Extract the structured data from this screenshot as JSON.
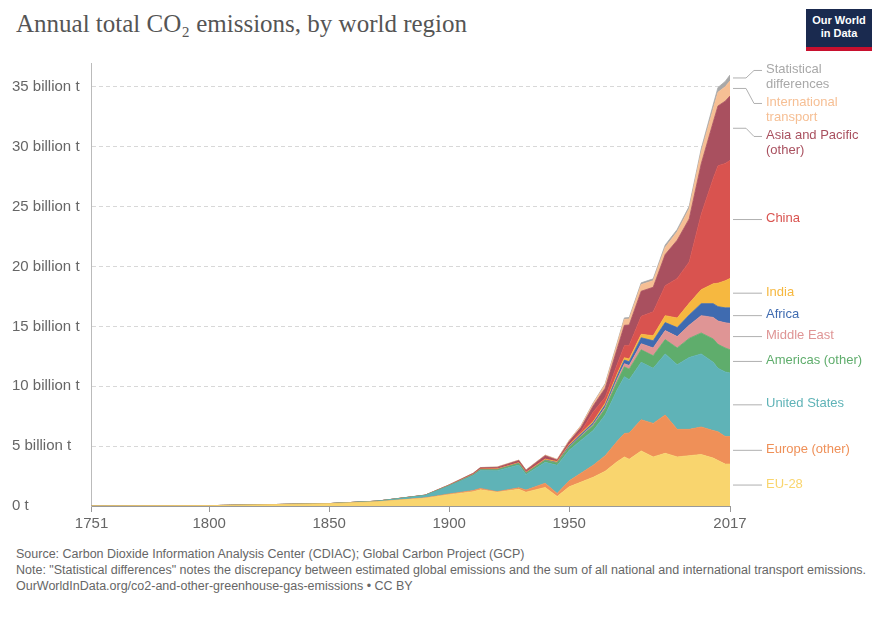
{
  "chart_data": {
    "type": "area",
    "title": "Annual total CO₂ emissions, by world region",
    "logo": [
      "Our World",
      "in Data"
    ],
    "source": "Source: Carbon Dioxide Information Analysis Center (CDIAC); Global Carbon Project (GCP)",
    "note": "Note: \"Statistical differences\" notes the discrepancy between estimated global emissions and the sum of all national and international transport emissions.",
    "footer": "OurWorldInData.org/co2-and-other-greenhouse-gas-emissions • CC BY",
    "stacked": true,
    "grid": true,
    "x": [
      1751,
      1800,
      1850,
      1870,
      1890,
      1900,
      1910,
      1913,
      1920,
      1929,
      1932,
      1940,
      1945,
      1950,
      1955,
      1960,
      1965,
      1970,
      1973,
      1975,
      1980,
      1985,
      1990,
      1995,
      2000,
      2005,
      2010,
      2012,
      2015,
      2017
    ],
    "xlim": [
      1751,
      2017
    ],
    "xticks": [
      1751,
      1800,
      1850,
      1900,
      1950,
      2017
    ],
    "ylim": [
      0,
      37000000000.0
    ],
    "yticks": [
      {
        "value": 0,
        "label": "0 t"
      },
      {
        "value": 5000000000.0,
        "label": "5 billion t"
      },
      {
        "value": 10000000000.0,
        "label": "10 billion t"
      },
      {
        "value": 15000000000.0,
        "label": "15 billion t"
      },
      {
        "value": 20000000000.0,
        "label": "20 billion t"
      },
      {
        "value": 25000000000.0,
        "label": "25 billion t"
      },
      {
        "value": 30000000000.0,
        "label": "30 billion t"
      },
      {
        "value": 35000000000.0,
        "label": "35 billion t"
      }
    ],
    "series": [
      {
        "name": "EU-28",
        "color": "#f9d56e",
        "values": [
          9000000.0,
          28000000.0,
          190000000.0,
          350000000.0,
          650000000.0,
          950000000.0,
          1200000000.0,
          1350000000.0,
          1150000000.0,
          1400000000.0,
          1150000000.0,
          1550000000.0,
          800000000.0,
          1600000000.0,
          2000000000.0,
          2400000000.0,
          2900000000.0,
          3700000000.0,
          4100000000.0,
          3900000000.0,
          4600000000.0,
          4100000000.0,
          4400000000.0,
          4100000000.0,
          4200000000.0,
          4300000000.0,
          4000000000.0,
          3800000000.0,
          3500000000.0,
          3500000000.0
        ]
      },
      {
        "name": "Europe (other)",
        "color": "#ef9058",
        "values": [
          0,
          1000000.0,
          5000000.0,
          10000000.0,
          30000000.0,
          60000000.0,
          90000000.0,
          120000000.0,
          50000000.0,
          120000000.0,
          180000000.0,
          350000000.0,
          250000000.0,
          500000000.0,
          750000000.0,
          1000000000.0,
          1300000000.0,
          1700000000.0,
          1950000000.0,
          2200000000.0,
          2600000000.0,
          2800000000.0,
          3200000000.0,
          2300000000.0,
          2200000000.0,
          2300000000.0,
          2300000000.0,
          2400000000.0,
          2300000000.0,
          2300000000.0
        ]
      },
      {
        "name": "United States",
        "color": "#5fb3b7",
        "values": [
          0,
          300000.0,
          5000000.0,
          40000000.0,
          200000000.0,
          660000000.0,
          1250000000.0,
          1500000000.0,
          1750000000.0,
          1900000000.0,
          1300000000.0,
          1750000000.0,
          2350000000.0,
          2550000000.0,
          2750000000.0,
          2900000000.0,
          3400000000.0,
          4300000000.0,
          4750000000.0,
          4450000000.0,
          4800000000.0,
          4600000000.0,
          5100000000.0,
          5400000000.0,
          6000000000.0,
          6100000000.0,
          5700000000.0,
          5300000000.0,
          5400000000.0,
          5300000000.0
        ]
      },
      {
        "name": "Americas (other)",
        "color": "#5fad6c",
        "values": [
          0,
          0,
          0,
          2000000.0,
          10000000.0,
          20000000.0,
          50000000.0,
          60000000.0,
          80000000.0,
          120000000.0,
          100000000.0,
          150000000.0,
          180000000.0,
          250000000.0,
          320000000.0,
          420000000.0,
          520000000.0,
          700000000.0,
          820000000.0,
          880000000.0,
          1050000000.0,
          1050000000.0,
          1200000000.0,
          1400000000.0,
          1600000000.0,
          1750000000.0,
          1950000000.0,
          2000000000.0,
          2000000000.0,
          1950000000.0
        ]
      },
      {
        "name": "Middle East",
        "color": "#df9595",
        "values": [
          0,
          0,
          0,
          0,
          0,
          0,
          0,
          0,
          1000000.0,
          3000000.0,
          4000000.0,
          6000000.0,
          10000000.0,
          30000000.0,
          50000000.0,
          80000000.0,
          120000000.0,
          200000000.0,
          270000000.0,
          300000000.0,
          500000000.0,
          650000000.0,
          750000000.0,
          950000000.0,
          1100000000.0,
          1450000000.0,
          1800000000.0,
          1950000000.0,
          2100000000.0,
          2200000000.0
        ]
      },
      {
        "name": "Africa",
        "color": "#3f6bb0",
        "values": [
          0,
          0,
          0,
          0,
          2000000.0,
          5000000.0,
          10000000.0,
          12000000.0,
          15000000.0,
          20000000.0,
          20000000.0,
          30000000.0,
          35000000.0,
          100000000.0,
          120000000.0,
          150000000.0,
          190000000.0,
          260000000.0,
          300000000.0,
          320000000.0,
          500000000.0,
          600000000.0,
          670000000.0,
          750000000.0,
          850000000.0,
          1000000000.0,
          1150000000.0,
          1200000000.0,
          1250000000.0,
          1300000000.0
        ]
      },
      {
        "name": "India",
        "color": "#f6b840",
        "values": [
          0,
          0,
          0,
          2000000.0,
          5000000.0,
          20000000.0,
          30000000.0,
          35000000.0,
          40000000.0,
          50000000.0,
          45000000.0,
          60000000.0,
          70000000.0,
          70000000.0,
          80000000.0,
          110000000.0,
          160000000.0,
          180000000.0,
          200000000.0,
          220000000.0,
          290000000.0,
          420000000.0,
          580000000.0,
          800000000.0,
          980000000.0,
          1170000000.0,
          1660000000.0,
          1960000000.0,
          2260000000.0,
          2450000000.0
        ]
      },
      {
        "name": "China",
        "color": "#d9534f",
        "values": [
          0,
          0,
          0,
          0,
          1000000.0,
          5000000.0,
          10000000.0,
          15000000.0,
          20000000.0,
          30000000.0,
          35000000.0,
          50000000.0,
          40000000.0,
          80000000.0,
          200000000.0,
          800000000.0,
          500000000.0,
          800000000.0,
          1000000000.0,
          1150000000.0,
          1500000000.0,
          2000000000.0,
          2500000000.0,
          3300000000.0,
          3450000000.0,
          6300000000.0,
          8800000000.0,
          9800000000.0,
          9800000000.0,
          9850000000.0
        ]
      },
      {
        "name": "Asia and Pacific (other)",
        "color": "#a9505f",
        "values": [
          0,
          0,
          0,
          2000000.0,
          10000000.0,
          40000000.0,
          80000000.0,
          100000000.0,
          120000000.0,
          150000000.0,
          140000000.0,
          250000000.0,
          100000000.0,
          200000000.0,
          300000000.0,
          500000000.0,
          750000000.0,
          1300000000.0,
          1700000000.0,
          1700000000.0,
          2100000000.0,
          2050000000.0,
          2600000000.0,
          3200000000.0,
          3600000000.0,
          4200000000.0,
          4700000000.0,
          5000000000.0,
          5200000000.0,
          5400000000.0
        ]
      },
      {
        "name": "International transport",
        "color": "#f6bf94",
        "values": [
          0,
          0,
          0,
          0,
          5000000.0,
          10000000.0,
          20000000.0,
          20000000.0,
          30000000.0,
          40000000.0,
          35000000.0,
          50000000.0,
          60000000.0,
          100000000.0,
          150000000.0,
          200000000.0,
          300000000.0,
          400000000.0,
          500000000.0,
          500000000.0,
          550000000.0,
          550000000.0,
          600000000.0,
          700000000.0,
          850000000.0,
          1000000000.0,
          1100000000.0,
          1150000000.0,
          1200000000.0,
          1250000000.0
        ]
      },
      {
        "name": "Statistical differences",
        "color": "#a8a8a8",
        "values": [
          0,
          0,
          0,
          0,
          0,
          0,
          0,
          0,
          0,
          0,
          0,
          0,
          0,
          0,
          20000000.0,
          50000000.0,
          80000000.0,
          100000000.0,
          120000000.0,
          120000000.0,
          150000000.0,
          150000000.0,
          200000000.0,
          200000000.0,
          200000000.0,
          250000000.0,
          350000000.0,
          400000000.0,
          450000000.0,
          500000000.0
        ]
      }
    ]
  }
}
